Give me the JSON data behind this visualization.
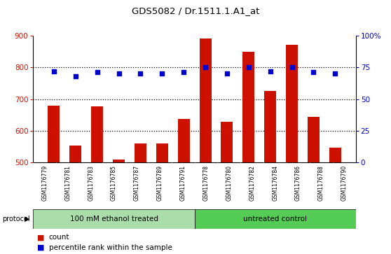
{
  "title": "GDS5082 / Dr.1511.1.A1_at",
  "samples": [
    "GSM1176779",
    "GSM1176781",
    "GSM1176783",
    "GSM1176785",
    "GSM1176787",
    "GSM1176789",
    "GSM1176791",
    "GSM1176778",
    "GSM1176780",
    "GSM1176782",
    "GSM1176784",
    "GSM1176786",
    "GSM1176788",
    "GSM1176790"
  ],
  "counts": [
    680,
    553,
    678,
    510,
    560,
    560,
    638,
    890,
    628,
    848,
    725,
    870,
    645,
    548
  ],
  "percentiles": [
    72,
    68,
    71,
    70,
    70,
    70,
    71,
    75,
    70,
    75,
    72,
    75,
    71,
    70
  ],
  "group1_label": "100 mM ethanol treated",
  "group2_label": "untreated control",
  "group1_count": 7,
  "group2_count": 7,
  "protocol_label": "protocol",
  "ylim_left": [
    500,
    900
  ],
  "ylim_right": [
    0,
    100
  ],
  "yticks_left": [
    500,
    600,
    700,
    800,
    900
  ],
  "yticks_right": [
    0,
    25,
    50,
    75,
    100
  ],
  "ytick_right_labels": [
    "0",
    "25",
    "50",
    "75",
    "100%"
  ],
  "bar_color": "#cc1100",
  "dot_color": "#0000cc",
  "group1_bg": "#aaddaa",
  "group2_bg": "#55cc55",
  "xlabel_bg": "#cccccc",
  "legend_count_color": "#cc1100",
  "legend_pct_color": "#0000cc",
  "grid_lines": [
    600,
    700,
    800
  ],
  "fig_bg": "#ffffff"
}
